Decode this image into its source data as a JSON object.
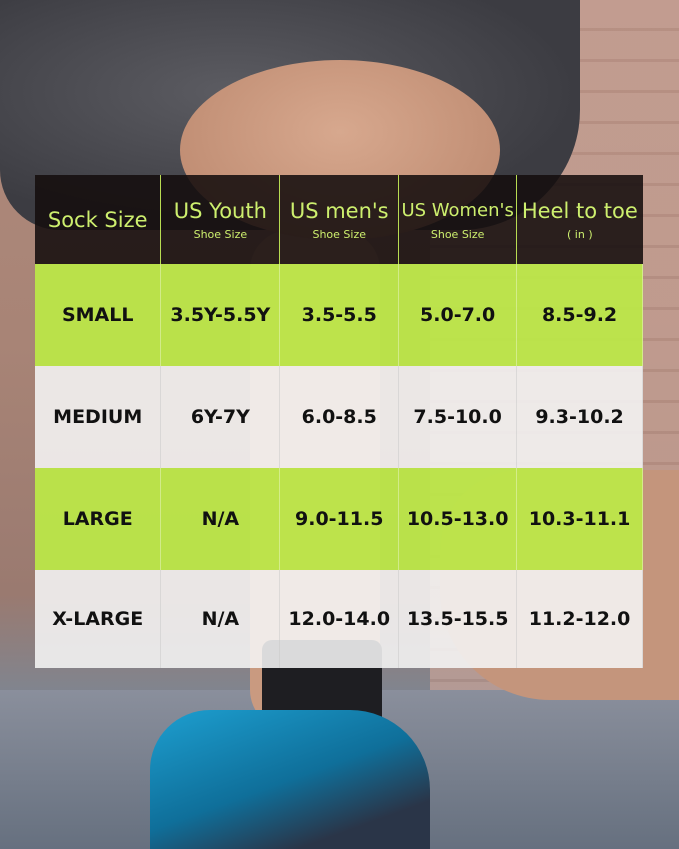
{
  "colors": {
    "header_bg": "#140e0e",
    "header_text": "#cdef6e",
    "green_row": "#bce946",
    "white_row": "#f5f5f5"
  },
  "headers": [
    {
      "main": "Sock Size",
      "sub": ""
    },
    {
      "main": "US Youth",
      "sub": "Shoe Size"
    },
    {
      "main": "US men's",
      "sub": "Shoe Size"
    },
    {
      "main": "US Women's",
      "sub": "Shoe Size"
    },
    {
      "main": "Heel to toe",
      "sub": "( in )"
    }
  ],
  "rows": [
    [
      "SMALL",
      "3.5Y-5.5Y",
      "3.5-5.5",
      "5.0-7.0",
      "8.5-9.2"
    ],
    [
      "MEDIUM",
      "6Y-7Y",
      "6.0-8.5",
      "7.5-10.0",
      "9.3-10.2"
    ],
    [
      "LARGE",
      "N/A",
      "9.0-11.5",
      "10.5-13.0",
      "10.3-11.1"
    ],
    [
      "X-LARGE",
      "N/A",
      "12.0-14.0",
      "13.5-15.5",
      "11.2-12.0"
    ]
  ]
}
